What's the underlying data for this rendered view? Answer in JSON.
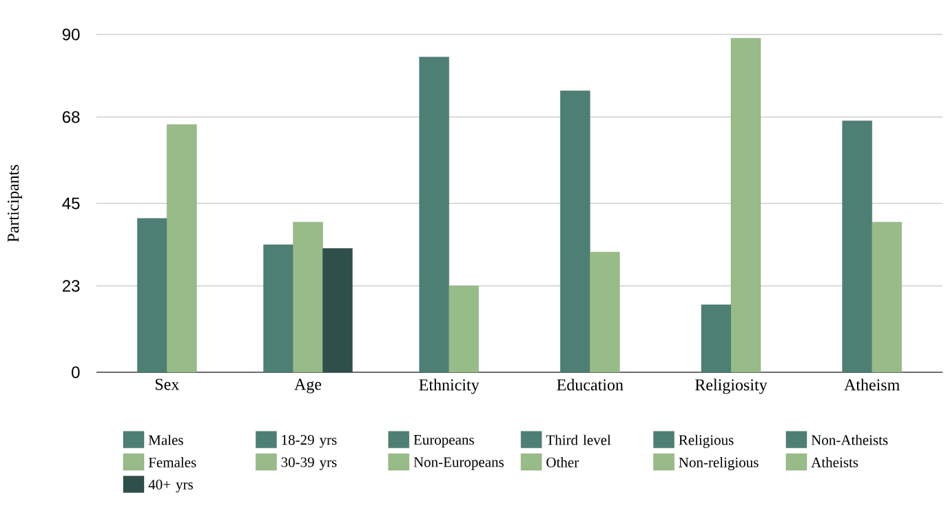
{
  "chart_data": {
    "type": "bar",
    "ylabel": "Participants",
    "categories": [
      "Sex",
      "Age",
      "Ethnicity",
      "Education",
      "Religiosity",
      "Atheism"
    ],
    "ylim": [
      0,
      90
    ],
    "yticks": [
      0,
      23,
      45,
      68,
      90
    ],
    "grid": "y",
    "legend": "bottom",
    "series": [
      {
        "name": "Males",
        "color": "#4d7f75",
        "values": [
          41,
          null,
          null,
          null,
          null,
          null
        ]
      },
      {
        "name": "18-29 yrs",
        "color": "#4d7f75",
        "values": [
          null,
          34,
          null,
          null,
          null,
          null
        ]
      },
      {
        "name": "Europeans",
        "color": "#4d7f75",
        "values": [
          null,
          null,
          84,
          null,
          null,
          null
        ]
      },
      {
        "name": "Third level",
        "color": "#4d7f75",
        "values": [
          null,
          null,
          null,
          75,
          null,
          null
        ]
      },
      {
        "name": "Religious",
        "color": "#4d7f75",
        "values": [
          null,
          null,
          null,
          null,
          18,
          null
        ]
      },
      {
        "name": "Non-Atheists",
        "color": "#4d7f75",
        "values": [
          null,
          null,
          null,
          null,
          null,
          67
        ]
      },
      {
        "name": "Females",
        "color": "#98bc88",
        "values": [
          66,
          null,
          null,
          null,
          null,
          null
        ]
      },
      {
        "name": "30-39 yrs",
        "color": "#98bc88",
        "values": [
          null,
          40,
          null,
          null,
          null,
          null
        ]
      },
      {
        "name": "Non-Europeans",
        "color": "#98bc88",
        "values": [
          null,
          null,
          23,
          null,
          null,
          null
        ]
      },
      {
        "name": "Other",
        "color": "#98bc88",
        "values": [
          null,
          null,
          null,
          32,
          null,
          null
        ]
      },
      {
        "name": "Non-religious",
        "color": "#98bc88",
        "values": [
          null,
          null,
          null,
          null,
          89,
          null
        ]
      },
      {
        "name": "Atheists",
        "color": "#98bc88",
        "values": [
          null,
          null,
          null,
          null,
          null,
          40
        ]
      },
      {
        "name": "40+ yrs",
        "color": "#2f4f4b",
        "values": [
          null,
          33,
          null,
          null,
          null,
          null
        ]
      }
    ]
  }
}
